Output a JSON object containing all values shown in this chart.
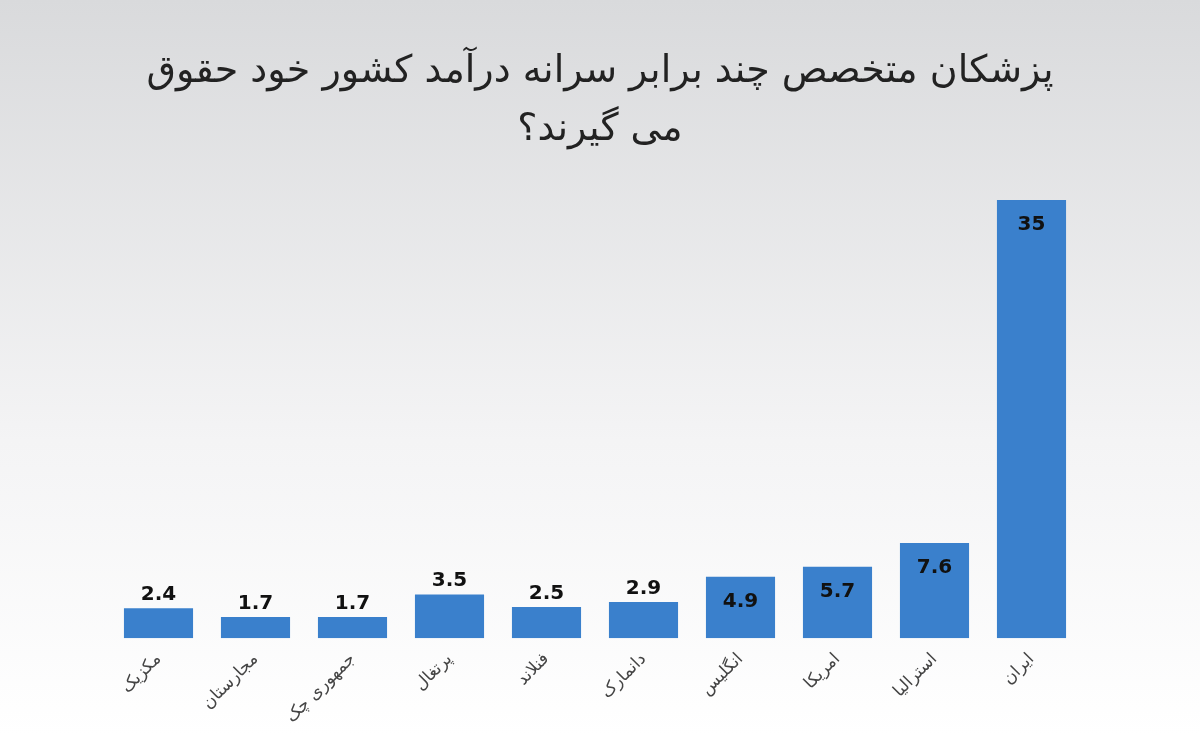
{
  "chart_data": {
    "type": "bar",
    "title": "پزشکان متخصص چند برابر سرانه درآمد کشور خود حقوق می گیرند؟",
    "categories": [
      "مکزیک",
      "مجارستان",
      "جمهوری چک",
      "پرتغال",
      "فنلاند",
      "دانمارک",
      "انگلیس",
      "امریکا",
      "استرالیا",
      "ایران"
    ],
    "values": [
      2.4,
      1.7,
      1.7,
      3.5,
      2.5,
      2.9,
      4.9,
      5.7,
      7.6,
      35
    ],
    "color": "#3a80cc",
    "data_labels": true
  }
}
